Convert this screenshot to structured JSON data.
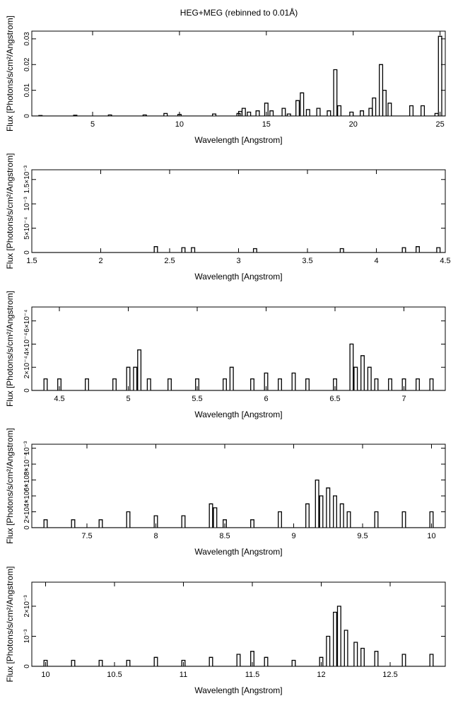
{
  "figure_title": "HEG+MEG (rebinned to 0.01Å)",
  "chart_data": [
    {
      "type": "line",
      "step": true,
      "xlabel": "Wavelength [Angstrom]",
      "ylabel": "Flux [Photons/s/cm²/Angstrom]",
      "xlim": [
        1.5,
        25.3
      ],
      "ylim": [
        0,
        0.033
      ],
      "xticks": [
        5,
        10,
        15,
        20,
        25
      ],
      "xtick_labels": [
        "5",
        "10",
        "15",
        "20",
        "25"
      ],
      "yticks": [
        0,
        0.01,
        0.02,
        0.03
      ],
      "ytick_labels": [
        "0",
        "0.01",
        "0.02",
        "0.03"
      ],
      "series": [
        {
          "x": [
            2,
            4,
            6,
            8,
            9.2,
            10,
            12,
            13.4,
            13.5,
            13.7,
            14.0,
            14.5,
            15.0,
            15.3,
            16.0,
            16.3,
            16.8,
            17.05,
            17.4,
            18.0,
            18.6,
            18.97,
            19.2,
            19.9,
            20.5,
            21.0,
            21.2,
            21.6,
            21.8,
            22.1,
            23.35,
            24.0,
            24.8,
            25.0
          ],
          "y": [
            0.0002,
            0.0003,
            0.0004,
            0.0004,
            0.001,
            0.0006,
            0.0008,
            0.001,
            0.0018,
            0.003,
            0.0015,
            0.002,
            0.005,
            0.002,
            0.003,
            0.0008,
            0.006,
            0.009,
            0.0025,
            0.003,
            0.002,
            0.018,
            0.004,
            0.0015,
            0.002,
            0.003,
            0.007,
            0.02,
            0.01,
            0.005,
            0.004,
            0.004,
            0.001,
            0.031
          ]
        }
      ]
    },
    {
      "type": "line",
      "step": true,
      "xlabel": "Wavelength [Angstrom]",
      "ylabel": "Flux [Photons/s/cm²/Angstrom]",
      "xlim": [
        1.5,
        4.5
      ],
      "ylim": [
        0,
        0.0017
      ],
      "xticks": [
        1.5,
        2,
        2.5,
        3,
        3.5,
        4,
        4.5
      ],
      "xtick_labels": [
        "1.5",
        "2",
        "2.5",
        "3",
        "3.5",
        "4",
        "4.5"
      ],
      "yticks": [
        0,
        0.0005,
        0.001,
        0.0015
      ],
      "ytick_labels": [
        "0",
        "5×10⁻⁴",
        "10⁻³",
        "1.5×10⁻³"
      ],
      "series": [
        {
          "x": [
            1.5,
            2.0,
            2.4,
            2.45,
            2.6,
            2.67,
            3.0,
            3.12,
            3.5,
            3.75,
            4.0,
            4.2,
            4.3,
            4.45
          ],
          "y": [
            0,
            0,
            0.00012,
            0,
            0.0001,
            0.0001,
            0,
            8e-05,
            0,
            8e-05,
            0,
            0.0001,
            0.00012,
            0.0001
          ]
        }
      ]
    },
    {
      "type": "line",
      "step": true,
      "xlabel": "Wavelength [Angstrom]",
      "ylabel": "Flux [Photons/s/cm²/Angstrom]",
      "xlim": [
        4.3,
        7.3
      ],
      "ylim": [
        0,
        0.00072
      ],
      "xticks": [
        4.5,
        5,
        5.5,
        6,
        6.5,
        7
      ],
      "xtick_labels": [
        "4.5",
        "5",
        "5.5",
        "6",
        "6.5",
        "7"
      ],
      "yticks": [
        0,
        0.0002,
        0.0004,
        0.0006
      ],
      "ytick_labels": [
        "0",
        "2×10⁻⁴",
        "4×10⁻⁴",
        "6×10⁻⁴"
      ],
      "series": [
        {
          "x": [
            4.4,
            4.5,
            4.7,
            4.9,
            5.0,
            5.05,
            5.08,
            5.15,
            5.3,
            5.5,
            5.7,
            5.75,
            5.9,
            6.0,
            6.1,
            6.2,
            6.3,
            6.5,
            6.62,
            6.65,
            6.7,
            6.75,
            6.8,
            6.9,
            7.0,
            7.1,
            7.2
          ],
          "y": [
            0.0001,
            0.0001,
            0.0001,
            0.0001,
            0.0002,
            0.0002,
            0.00035,
            0.0001,
            0.0001,
            0.0001,
            0.0001,
            0.0002,
            0.0001,
            0.00015,
            0.0001,
            0.00015,
            0.0001,
            0.0001,
            0.0004,
            0.0002,
            0.0003,
            0.0002,
            0.0001,
            0.0001,
            0.0001,
            0.0001,
            0.0001
          ]
        }
      ]
    },
    {
      "type": "line",
      "step": true,
      "xlabel": "Wavelength [Angstrom]",
      "ylabel": "Flux [Photons/s/cm²/Angstrom]",
      "xlim": [
        7.1,
        10.1
      ],
      "ylim": [
        0,
        0.00105
      ],
      "xticks": [
        7.5,
        8,
        8.5,
        9,
        9.5,
        10
      ],
      "xtick_labels": [
        "7.5",
        "8",
        "8.5",
        "9",
        "9.5",
        "10"
      ],
      "yticks": [
        0,
        0.0002,
        0.0004,
        0.0006,
        0.0008,
        0.001
      ],
      "ytick_labels": [
        "0",
        "2×10⁻⁴",
        "4×10⁻⁴",
        "6×10⁻⁴",
        "8×10⁻⁴",
        "10⁻³"
      ],
      "series": [
        {
          "x": [
            7.2,
            7.4,
            7.6,
            7.8,
            8.0,
            8.2,
            8.4,
            8.43,
            8.5,
            8.7,
            8.9,
            9.1,
            9.17,
            9.2,
            9.25,
            9.3,
            9.35,
            9.4,
            9.6,
            9.8,
            10.0
          ],
          "y": [
            0.0001,
            0.0001,
            0.0001,
            0.0002,
            0.00015,
            0.00015,
            0.0003,
            0.00025,
            0.0001,
            0.0001,
            0.0002,
            0.0003,
            0.0006,
            0.0004,
            0.0005,
            0.0004,
            0.0003,
            0.0002,
            0.0002,
            0.0002,
            0.0002
          ]
        }
      ]
    },
    {
      "type": "line",
      "step": true,
      "xlabel": "Wavelength [Angstrom]",
      "ylabel": "Flux [Photons/s/cm²/Angstrom]",
      "xlim": [
        9.9,
        12.9
      ],
      "ylim": [
        0,
        0.0028
      ],
      "xticks": [
        10,
        10.5,
        11,
        11.5,
        12,
        12.5
      ],
      "xtick_labels": [
        "10",
        "10.5",
        "11",
        "11.5",
        "12",
        "12.5"
      ],
      "yticks": [
        0,
        0.001,
        0.002
      ],
      "ytick_labels": [
        "0",
        "10⁻³",
        "2×10⁻³"
      ],
      "series": [
        {
          "x": [
            10.0,
            10.2,
            10.4,
            10.6,
            10.8,
            11.0,
            11.2,
            11.4,
            11.5,
            11.6,
            11.8,
            12.0,
            12.05,
            12.1,
            12.13,
            12.18,
            12.25,
            12.3,
            12.4,
            12.6,
            12.8
          ],
          "y": [
            0.0002,
            0.0002,
            0.0002,
            0.0002,
            0.0003,
            0.0002,
            0.0003,
            0.0004,
            0.0005,
            0.0003,
            0.0002,
            0.0003,
            0.001,
            0.0018,
            0.002,
            0.0012,
            0.0008,
            0.0006,
            0.0005,
            0.0004,
            0.0004
          ]
        }
      ]
    }
  ]
}
